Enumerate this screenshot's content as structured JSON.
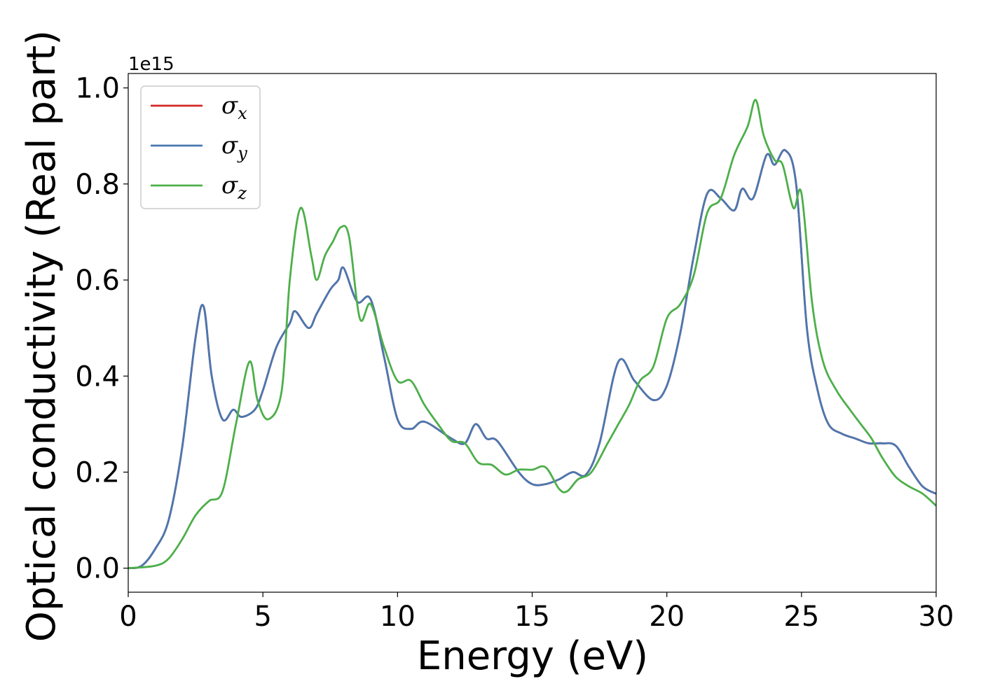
{
  "chart_data": {
    "type": "line",
    "xlabel": "Energy (eV)",
    "ylabel": "Optical conductivity (Real part)",
    "y_offset_label": "1e15",
    "xlim": [
      0,
      30
    ],
    "ylim": [
      -0.05,
      1.03
    ],
    "x_ticks": [
      "0",
      "5",
      "10",
      "15",
      "20",
      "25",
      "30"
    ],
    "y_ticks": [
      "0.0",
      "0.2",
      "0.4",
      "0.6",
      "0.8",
      "1.0"
    ],
    "grid": false,
    "legend_position": "top-left",
    "series": [
      {
        "name": "σx",
        "legend_symbol": "σ",
        "legend_subscript": "x",
        "color": "#d62728",
        "x": [
          0,
          0.5,
          1.0,
          1.5,
          2.0,
          2.5,
          2.8,
          3.1,
          3.5,
          3.9,
          4.2,
          4.7,
          5.0,
          5.5,
          6.0,
          6.2,
          6.7,
          7.0,
          7.5,
          7.8,
          8.0,
          8.5,
          9.0,
          9.5,
          10.0,
          10.5,
          11.0,
          12.0,
          12.5,
          12.9,
          13.3,
          13.7,
          14.5,
          15.0,
          15.5,
          16.0,
          16.5,
          17.0,
          17.5,
          18.2,
          18.8,
          19.5,
          20.0,
          20.5,
          21.0,
          21.5,
          22.0,
          22.5,
          22.8,
          23.2,
          23.7,
          24.0,
          24.4,
          24.8,
          25.2,
          25.6,
          26.0,
          26.5,
          27.0,
          27.5,
          28.0,
          28.5,
          29.0,
          29.5,
          30.0
        ],
        "values": [
          0.0,
          0.005,
          0.04,
          0.1,
          0.25,
          0.48,
          0.545,
          0.4,
          0.31,
          0.33,
          0.315,
          0.33,
          0.37,
          0.46,
          0.51,
          0.535,
          0.5,
          0.53,
          0.58,
          0.6,
          0.625,
          0.555,
          0.56,
          0.44,
          0.31,
          0.29,
          0.305,
          0.27,
          0.26,
          0.3,
          0.27,
          0.265,
          0.2,
          0.175,
          0.175,
          0.185,
          0.2,
          0.195,
          0.26,
          0.43,
          0.39,
          0.35,
          0.38,
          0.49,
          0.65,
          0.78,
          0.77,
          0.745,
          0.79,
          0.77,
          0.86,
          0.84,
          0.87,
          0.8,
          0.5,
          0.37,
          0.3,
          0.28,
          0.27,
          0.26,
          0.26,
          0.255,
          0.21,
          0.17,
          0.155
        ]
      },
      {
        "name": "σy",
        "legend_symbol": "σ",
        "legend_subscript": "y",
        "color": "#4a78b0",
        "x": [
          0,
          0.5,
          1.0,
          1.5,
          2.0,
          2.5,
          2.8,
          3.1,
          3.5,
          3.9,
          4.2,
          4.7,
          5.0,
          5.5,
          6.0,
          6.2,
          6.7,
          7.0,
          7.5,
          7.8,
          8.0,
          8.5,
          9.0,
          9.5,
          10.0,
          10.5,
          11.0,
          12.0,
          12.5,
          12.9,
          13.3,
          13.7,
          14.5,
          15.0,
          15.5,
          16.0,
          16.5,
          17.0,
          17.5,
          18.2,
          18.8,
          19.5,
          20.0,
          20.5,
          21.0,
          21.5,
          22.0,
          22.5,
          22.8,
          23.2,
          23.7,
          24.0,
          24.4,
          24.8,
          25.2,
          25.6,
          26.0,
          26.5,
          27.0,
          27.5,
          28.0,
          28.5,
          29.0,
          29.5,
          30.0
        ],
        "values": [
          0.0,
          0.005,
          0.04,
          0.1,
          0.25,
          0.48,
          0.545,
          0.4,
          0.31,
          0.33,
          0.315,
          0.33,
          0.37,
          0.46,
          0.51,
          0.535,
          0.5,
          0.53,
          0.58,
          0.6,
          0.625,
          0.555,
          0.56,
          0.44,
          0.31,
          0.29,
          0.305,
          0.27,
          0.26,
          0.3,
          0.27,
          0.265,
          0.2,
          0.175,
          0.175,
          0.185,
          0.2,
          0.195,
          0.26,
          0.43,
          0.39,
          0.35,
          0.38,
          0.49,
          0.65,
          0.78,
          0.77,
          0.745,
          0.79,
          0.77,
          0.86,
          0.84,
          0.87,
          0.8,
          0.5,
          0.37,
          0.3,
          0.28,
          0.27,
          0.26,
          0.26,
          0.255,
          0.21,
          0.17,
          0.155
        ]
      },
      {
        "name": "σz",
        "legend_symbol": "σ",
        "legend_subscript": "z",
        "color": "#4daf4a",
        "x": [
          0,
          1.0,
          1.5,
          2.0,
          2.5,
          3.0,
          3.5,
          4.0,
          4.5,
          4.8,
          5.2,
          5.7,
          6.0,
          6.4,
          6.8,
          7.0,
          7.3,
          7.6,
          7.9,
          8.2,
          8.6,
          9.0,
          9.5,
          10.0,
          10.5,
          11.0,
          11.5,
          12.0,
          12.5,
          13.0,
          13.5,
          14.0,
          14.5,
          15.0,
          15.5,
          16.0,
          16.3,
          16.7,
          17.2,
          17.8,
          18.2,
          18.6,
          19.0,
          19.5,
          20.0,
          20.5,
          21.0,
          21.5,
          22.0,
          22.5,
          23.0,
          23.3,
          23.6,
          24.0,
          24.3,
          24.7,
          25.0,
          25.4,
          25.8,
          26.3,
          26.8,
          27.2,
          27.6,
          28.0,
          28.5,
          29.0,
          29.5,
          30.0
        ],
        "values": [
          0.0,
          0.005,
          0.02,
          0.06,
          0.11,
          0.14,
          0.16,
          0.3,
          0.43,
          0.35,
          0.31,
          0.37,
          0.6,
          0.75,
          0.65,
          0.6,
          0.65,
          0.68,
          0.71,
          0.69,
          0.52,
          0.55,
          0.46,
          0.39,
          0.39,
          0.34,
          0.3,
          0.265,
          0.26,
          0.22,
          0.215,
          0.195,
          0.205,
          0.205,
          0.21,
          0.165,
          0.16,
          0.185,
          0.2,
          0.26,
          0.3,
          0.34,
          0.39,
          0.42,
          0.52,
          0.55,
          0.61,
          0.74,
          0.77,
          0.86,
          0.92,
          0.975,
          0.9,
          0.85,
          0.84,
          0.75,
          0.78,
          0.55,
          0.43,
          0.37,
          0.33,
          0.3,
          0.27,
          0.23,
          0.19,
          0.17,
          0.155,
          0.13
        ]
      }
    ]
  }
}
